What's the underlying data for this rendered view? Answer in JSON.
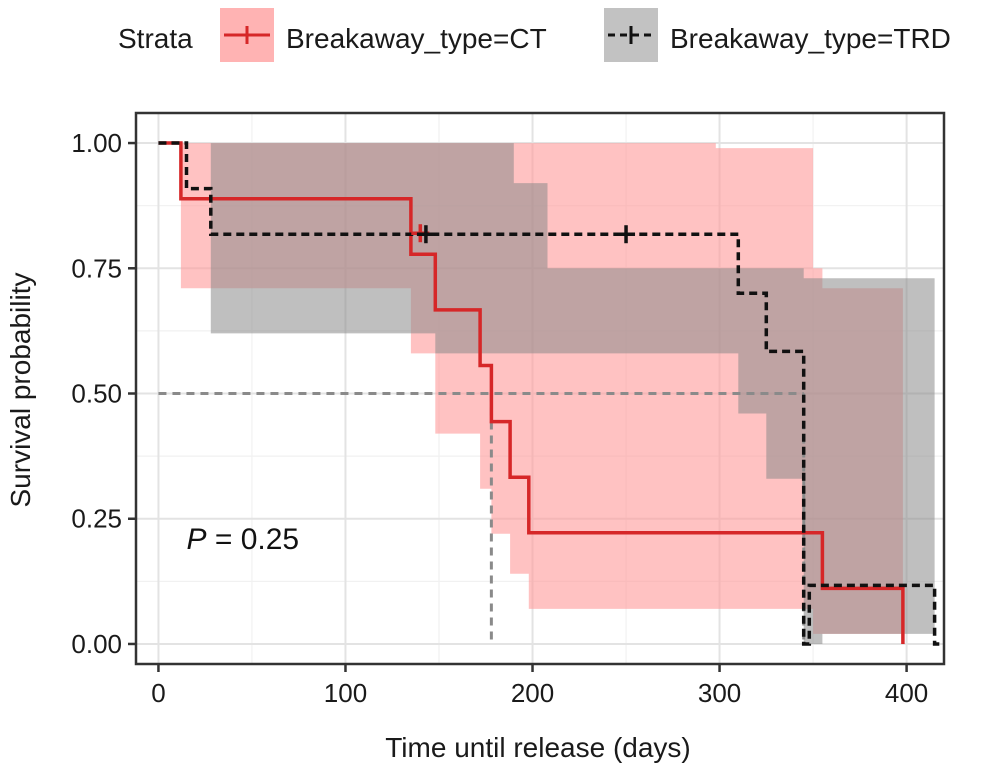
{
  "chart_data": {
    "type": "line",
    "subtype": "kaplan-meier survival curve",
    "xlabel": "Time until release (days)",
    "ylabel": "Survival probability",
    "xlim": [
      -12,
      420
    ],
    "ylim": [
      -0.04,
      1.06
    ],
    "xticks": [
      0,
      100,
      200,
      300,
      400
    ],
    "yticks": [
      0.0,
      0.25,
      0.5,
      0.75,
      1.0
    ],
    "ytick_labels": [
      "0.00",
      "0.25",
      "0.50",
      "0.75",
      "1.00"
    ],
    "grid": true,
    "legend": {
      "position": "top",
      "title": "Strata",
      "entries": [
        "Breakaway_type=CT",
        "Breakaway_type=TRD"
      ]
    },
    "annotation": {
      "italic_part": "P",
      "rest": " = 0.25",
      "x": 15,
      "y": 0.19
    },
    "median_line": {
      "y": 0.5
    },
    "series": [
      {
        "name": "Breakaway_type=CT",
        "color": "#d62728",
        "band_color": "#ff9a9a",
        "line_style": "solid",
        "steps": [
          [
            0,
            1.0
          ],
          [
            12,
            0.889
          ],
          [
            135,
            0.778
          ],
          [
            148,
            0.667
          ],
          [
            172,
            0.556
          ],
          [
            178,
            0.444
          ],
          [
            188,
            0.333
          ],
          [
            198,
            0.222
          ],
          [
            355,
            0.111
          ],
          [
            398,
            0.0
          ]
        ],
        "end_x": 398,
        "ci_steps": [
          [
            12,
            0.71,
            1.0
          ],
          [
            135,
            0.58,
            1.0
          ],
          [
            148,
            0.42,
            1.0
          ],
          [
            172,
            0.31,
            1.0
          ],
          [
            178,
            0.22,
            1.0
          ],
          [
            188,
            0.14,
            1.0
          ],
          [
            198,
            0.07,
            1.0
          ],
          [
            298,
            0.07,
            0.99
          ],
          [
            350,
            0.02,
            0.75
          ],
          [
            355,
            0.02,
            0.71
          ]
        ],
        "ci_end_x": 398,
        "censors": [
          [
            140,
            0.82
          ]
        ]
      },
      {
        "name": "Breakaway_type=TRD",
        "color": "#111111",
        "band_color": "#8a8a8a",
        "line_style": "dashed",
        "steps": [
          [
            0,
            1.0
          ],
          [
            15,
            0.909
          ],
          [
            28,
            0.818
          ],
          [
            310,
            0.7
          ],
          [
            325,
            0.584
          ],
          [
            345,
            0.0
          ],
          [
            348,
            0.117
          ],
          [
            415,
            0.0
          ]
        ],
        "end_x": 418,
        "ci_steps": [
          [
            28,
            0.62,
            1.0
          ],
          [
            136,
            0.62,
            1.0
          ],
          [
            148,
            0.58,
            1.0
          ],
          [
            175,
            0.58,
            1.0
          ],
          [
            190,
            0.58,
            0.92
          ],
          [
            208,
            0.58,
            0.75
          ],
          [
            310,
            0.46,
            0.75
          ],
          [
            325,
            0.33,
            0.75
          ],
          [
            345,
            0.0,
            0.73
          ],
          [
            355,
            0.02,
            0.73
          ]
        ],
        "ci_end_x": 415,
        "censors": [
          [
            143,
            0.818
          ],
          [
            250,
            0.818
          ]
        ]
      }
    ],
    "median_drops": [
      {
        "x": 178,
        "from": 0.5,
        "to": 0.0
      },
      {
        "x": 345,
        "from": 0.5,
        "to": 0.0
      }
    ]
  }
}
